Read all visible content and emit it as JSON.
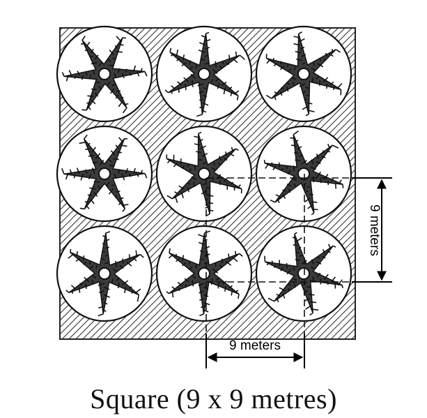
{
  "diagram": {
    "caption": "Square (9 x 9 metres)",
    "dimension_horizontal": "9 meters",
    "dimension_vertical": "9 meters",
    "grid": {
      "rows": 3,
      "columns": 3
    },
    "colors": {
      "ink": "#111111",
      "background": "#ffffff",
      "hatch": "#333333"
    },
    "icons": [
      "tree-canopy-icon",
      "trunk-icon"
    ]
  }
}
